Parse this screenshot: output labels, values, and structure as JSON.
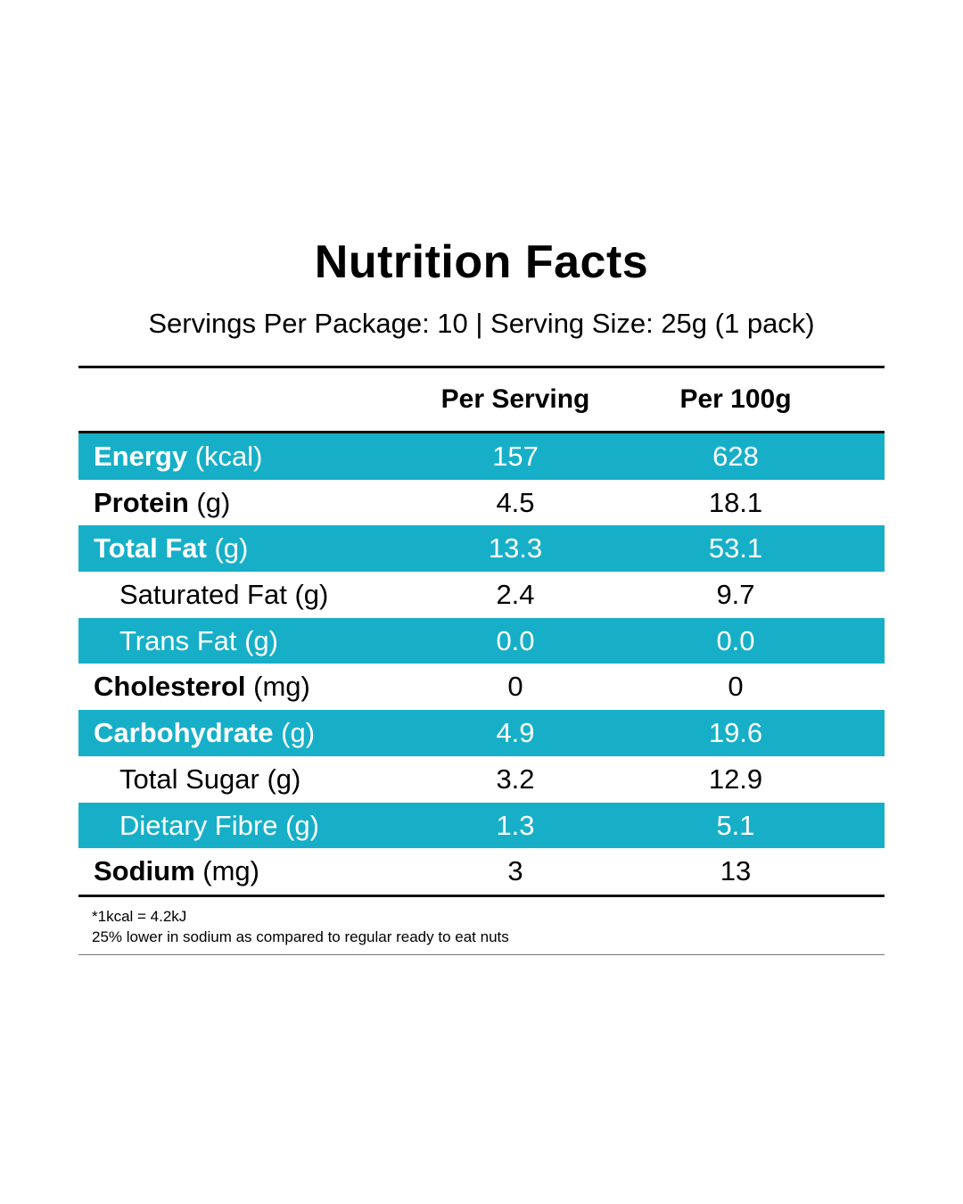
{
  "title": "Nutrition Facts",
  "subtitle": "Servings Per Package: 10 | Serving Size: 25g (1 pack)",
  "columns": {
    "per_serving": "Per Serving",
    "per_100g": "Per 100g"
  },
  "rows": [
    {
      "name": "Energy",
      "unit": " (kcal)",
      "per_serving": "157",
      "per_100g": "628",
      "bold": true,
      "shaded": true
    },
    {
      "name": "Protein",
      "unit": " (g)",
      "per_serving": "4.5",
      "per_100g": "18.1",
      "bold": true,
      "shaded": false
    },
    {
      "name": "Total Fat",
      "unit": " (g)",
      "per_serving": "13.3",
      "per_100g": "53.1",
      "bold": true,
      "shaded": true
    },
    {
      "name": "Saturated Fat",
      "unit": " (g)",
      "per_serving": "2.4",
      "per_100g": "9.7",
      "bold": false,
      "shaded": false
    },
    {
      "name": "Trans Fat",
      "unit": " (g)",
      "per_serving": "0.0",
      "per_100g": "0.0",
      "bold": false,
      "shaded": true
    },
    {
      "name": "Cholesterol",
      "unit": " (mg)",
      "per_serving": "0",
      "per_100g": "0",
      "bold": true,
      "shaded": false
    },
    {
      "name": "Carbohydrate",
      "unit": " (g)",
      "per_serving": "4.9",
      "per_100g": "19.6",
      "bold": true,
      "shaded": true
    },
    {
      "name": "Total Sugar",
      "unit": " (g)",
      "per_serving": "3.2",
      "per_100g": "12.9",
      "bold": false,
      "shaded": false
    },
    {
      "name": "Dietary Fibre",
      "unit": " (g)",
      "per_serving": "1.3",
      "per_100g": "5.1",
      "bold": false,
      "shaded": true
    },
    {
      "name": "Sodium",
      "unit": " (mg)",
      "per_serving": "3",
      "per_100g": "13",
      "bold": true,
      "shaded": false
    }
  ],
  "footnotes": {
    "line1": "*1kcal = 4.2kJ",
    "line2": "25% lower in sodium as compared to regular ready to eat nuts"
  },
  "colors": {
    "accent": "#17afc8",
    "text": "#000000"
  }
}
